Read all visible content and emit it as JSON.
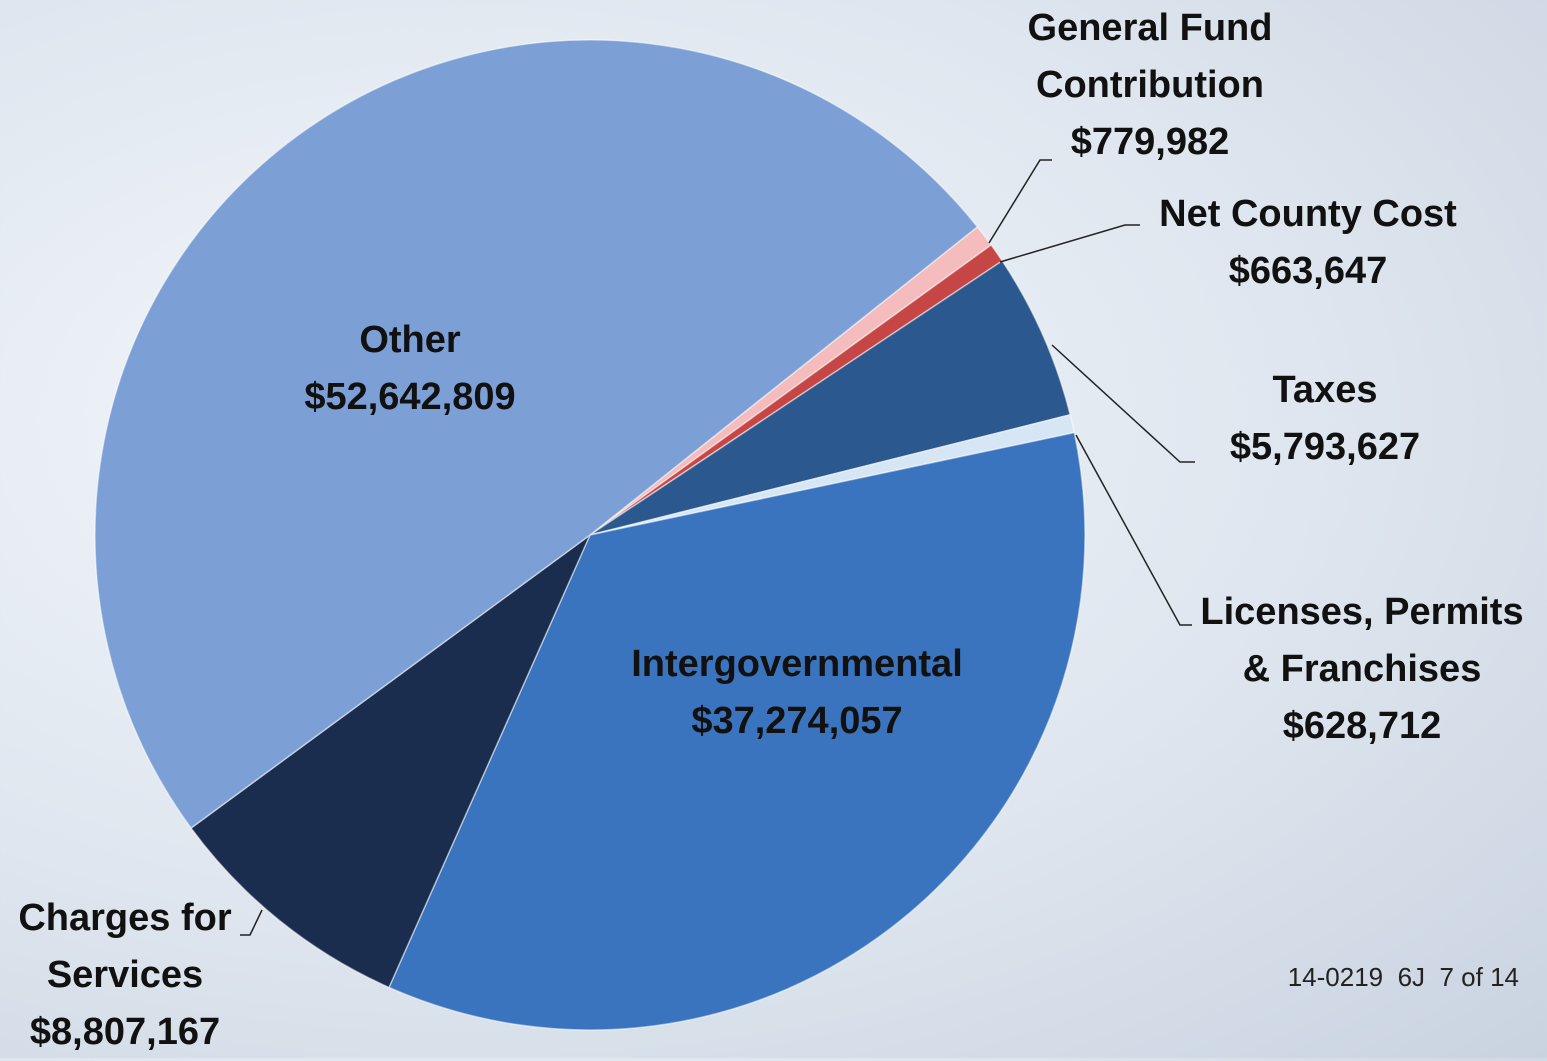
{
  "chart_data": {
    "type": "pie",
    "categories": [
      "General Fund Contribution",
      "Net County Cost",
      "Taxes",
      "Licenses, Permits & Franchises",
      "Intergovernmental",
      "Charges for Services",
      "Other"
    ],
    "values": [
      779982,
      663647,
      5793627,
      628712,
      37274057,
      8807167,
      52642809
    ],
    "value_labels": [
      "$779,982",
      "$663,647",
      "$5,793,627",
      "$628,712",
      "$37,274,057",
      "$8,807,167",
      "$52,642,809"
    ],
    "colors": [
      "#f4bcbc",
      "#c64646",
      "#2c5890",
      "#d6e6f4",
      "#3a74be",
      "#1a2d4f",
      "#7c9fd6"
    ]
  },
  "footer": "14-0219  6J  7 of 14"
}
